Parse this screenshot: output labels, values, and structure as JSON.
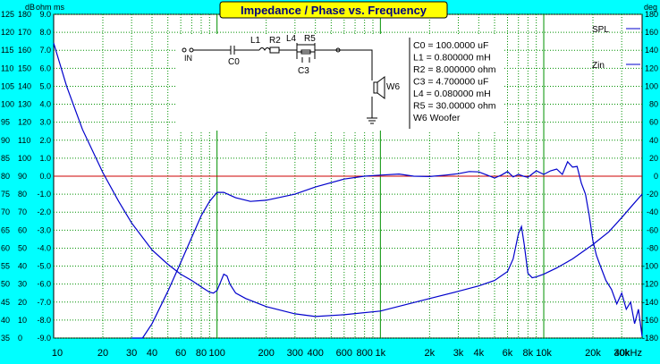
{
  "chart_data": {
    "type": "line",
    "title": "Impedance / Phase vs. Frequency",
    "xlabel": "",
    "x_scale": "log",
    "xlim": [
      10,
      40000
    ],
    "x_ticks": [
      {
        "v": 10,
        "label": "10"
      },
      {
        "v": 20,
        "label": "20"
      },
      {
        "v": 30,
        "label": "30"
      },
      {
        "v": 40,
        "label": "40"
      },
      {
        "v": 60,
        "label": "60"
      },
      {
        "v": 80,
        "label": "80"
      },
      {
        "v": 100,
        "label": "100"
      },
      {
        "v": 200,
        "label": "200"
      },
      {
        "v": 300,
        "label": "300"
      },
      {
        "v": 400,
        "label": "400"
      },
      {
        "v": 600,
        "label": "600"
      },
      {
        "v": 800,
        "label": "800"
      },
      {
        "v": 1000,
        "label": "1k"
      },
      {
        "v": 2000,
        "label": "2k"
      },
      {
        "v": 3000,
        "label": "3k"
      },
      {
        "v": 4000,
        "label": "4k"
      },
      {
        "v": 6000,
        "label": "6k"
      },
      {
        "v": 8000,
        "label": "8k"
      },
      {
        "v": 10000,
        "label": "10k"
      },
      {
        "v": 20000,
        "label": "20k"
      },
      {
        "v": 30000,
        "label": "30k"
      },
      {
        "v": 40000,
        "label": "40kHz"
      }
    ],
    "y_axes": {
      "spl": {
        "label": "dB",
        "ylim": [
          35,
          125
        ],
        "ticks": [
          "125",
          "120",
          "115",
          "110",
          "105",
          "100",
          "95",
          "90",
          "85",
          "80",
          "75",
          "70",
          "65",
          "60",
          "55",
          "50",
          "45",
          "40",
          "35"
        ]
      },
      "ohm": {
        "label": "ohm",
        "ylim": [
          0,
          180
        ],
        "ticks": [
          "180",
          "170",
          "160",
          "150",
          "140",
          "130",
          "120",
          "110",
          "100",
          "90",
          "80",
          "70",
          "60",
          "50",
          "40",
          "30",
          "20",
          "10",
          "0"
        ]
      },
      "ms": {
        "label": "ms",
        "ylim": [
          -9,
          9
        ],
        "ticks": [
          "9.0",
          "8.0",
          "7.0",
          "6.0",
          "5.0",
          "4.0",
          "3.0",
          "2.0",
          "1.0",
          "0.0",
          "-1.0",
          "-2.0",
          "-3.0",
          "-4.0",
          "-5.0",
          "-6.0",
          "-7.0",
          "-8.0",
          "-9.0"
        ]
      },
      "deg": {
        "label": "deg",
        "ylim": [
          -180,
          180
        ],
        "ticks": [
          "180",
          "160",
          "140",
          "120",
          "100",
          "80",
          "60",
          "40",
          "20",
          "0",
          "-20",
          "-40",
          "-60",
          "-80",
          "-100",
          "-120",
          "-140",
          "-160",
          "-180"
        ]
      }
    },
    "grid": true,
    "series": [
      {
        "name": "SPL",
        "axis": "spl",
        "color": "#0000cc",
        "x": [
          30,
          35,
          40,
          50,
          60,
          70,
          80,
          90,
          100,
          110,
          130,
          160,
          200,
          300,
          400,
          600,
          800,
          1000,
          1300,
          1600,
          2000,
          2500,
          3000,
          3500,
          4000,
          4500,
          5000,
          5500,
          6000,
          6500,
          7000,
          7500,
          8000,
          9000,
          10000,
          11000,
          12000,
          13000,
          14000,
          15000,
          16000,
          17000,
          18000,
          19000,
          20000,
          21000,
          22000,
          24000,
          26000,
          28000,
          30000,
          32000,
          34000,
          36000,
          38000,
          40000
        ],
        "y": [
          29,
          34,
          39,
          48,
          56,
          63,
          69,
          73,
          75.5,
          75.5,
          74,
          73,
          73.3,
          75,
          77,
          79.2,
          80,
          80.3,
          80.6,
          80,
          79.9,
          80.3,
          80.7,
          81.3,
          81.2,
          80.3,
          79.5,
          80.3,
          81.3,
          79.8,
          80.5,
          80,
          79.7,
          81.5,
          80.5,
          81.5,
          82,
          80.5,
          84,
          82.5,
          82.7,
          78,
          75,
          69,
          62,
          58,
          55.5,
          51,
          48.5,
          44.5,
          47.5,
          43,
          45,
          39,
          43,
          35.5
        ]
      },
      {
        "name": "Zin",
        "axis": "ohm",
        "color": "#0000cc",
        "x": [
          10,
          12,
          15,
          20,
          25,
          30,
          40,
          50,
          60,
          70,
          80,
          90,
          95,
          100,
          105,
          110,
          115,
          120,
          130,
          150,
          200,
          300,
          400,
          600,
          1000,
          2000,
          3000,
          4000,
          5000,
          6000,
          6500,
          7000,
          7300,
          7600,
          8000,
          8500,
          9000,
          10000,
          12000,
          15000,
          20000,
          25000,
          30000,
          35000,
          40000
        ],
        "y": [
          164,
          140,
          116,
          92,
          76,
          64,
          49,
          41,
          35.5,
          32,
          28.5,
          25.5,
          25,
          26.5,
          31,
          35.5,
          34.5,
          30,
          25,
          22,
          17.5,
          13.5,
          12,
          13,
          15,
          22,
          26,
          29,
          32,
          37,
          44,
          58,
          62,
          52,
          36,
          33.5,
          34,
          35.5,
          39,
          44,
          52,
          59,
          67,
          74,
          80
        ]
      }
    ],
    "reference_lines": [
      {
        "axis": "deg",
        "value": 0,
        "color": "#cc0000"
      }
    ],
    "legend": {
      "position": "top-right",
      "entries": [
        "SPL",
        "Zin"
      ]
    },
    "schematic": {
      "labels": [
        "IN",
        "C0",
        "L1",
        "R2",
        "L4",
        "R5",
        "C3",
        "W6"
      ],
      "values": [
        "C0 = 100.0000 uF",
        "L1 = 0.800000 mH",
        "R2 = 8.000000 ohm",
        "C3 = 4.700000 uF",
        "L4 = 0.080000 mH",
        "R5 = 30.00000 ohm",
        "W6 Woofer"
      ]
    }
  }
}
